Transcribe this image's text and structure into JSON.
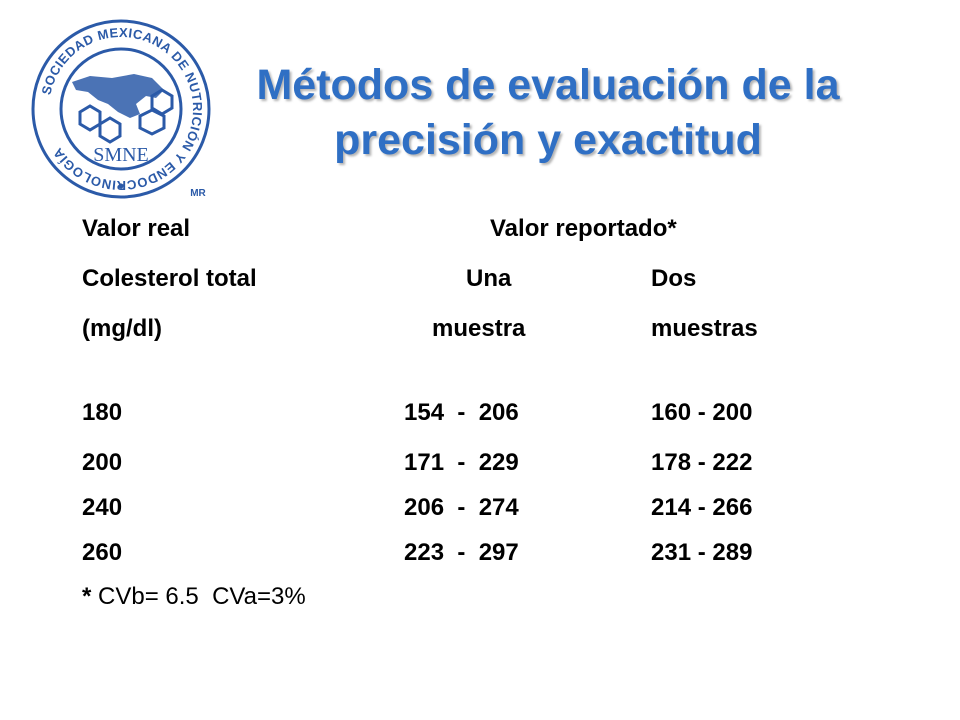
{
  "logo": {
    "ring_text_top": "SOCIEDAD MEXICANA DE NUTRICIÓN Y ENDOCRINOLOGÍA",
    "center_text": "SMNE",
    "trademark": "MR",
    "color": "#2b5aa8"
  },
  "title": {
    "line1": "Métodos de evaluación de la",
    "line2": "precisión y exactitud",
    "color": "#2f6fc4"
  },
  "header": {
    "col1_line1": "Valor real",
    "col1_line2": "Colesterol total",
    "col1_line3": "(mg/dl)",
    "col23_title": "Valor reportado*",
    "col2_line1": "Una",
    "col2_line2": "muestra",
    "col3_line1": "Dos",
    "col3_line2": "muestras"
  },
  "rows": [
    {
      "real": "180",
      "one": "154  -  206",
      "two": "160 - 200"
    },
    {
      "real": "200",
      "one": "171  -  229",
      "two": "178 - 222"
    },
    {
      "real": "240",
      "one": "206  -  274",
      "two": "214 - 266"
    },
    {
      "real": "260",
      "one": "223  -  297",
      "two": "231 - 289"
    }
  ],
  "footnote": {
    "star": "*",
    "text": " CVb= 6.5  CVa=3%"
  }
}
